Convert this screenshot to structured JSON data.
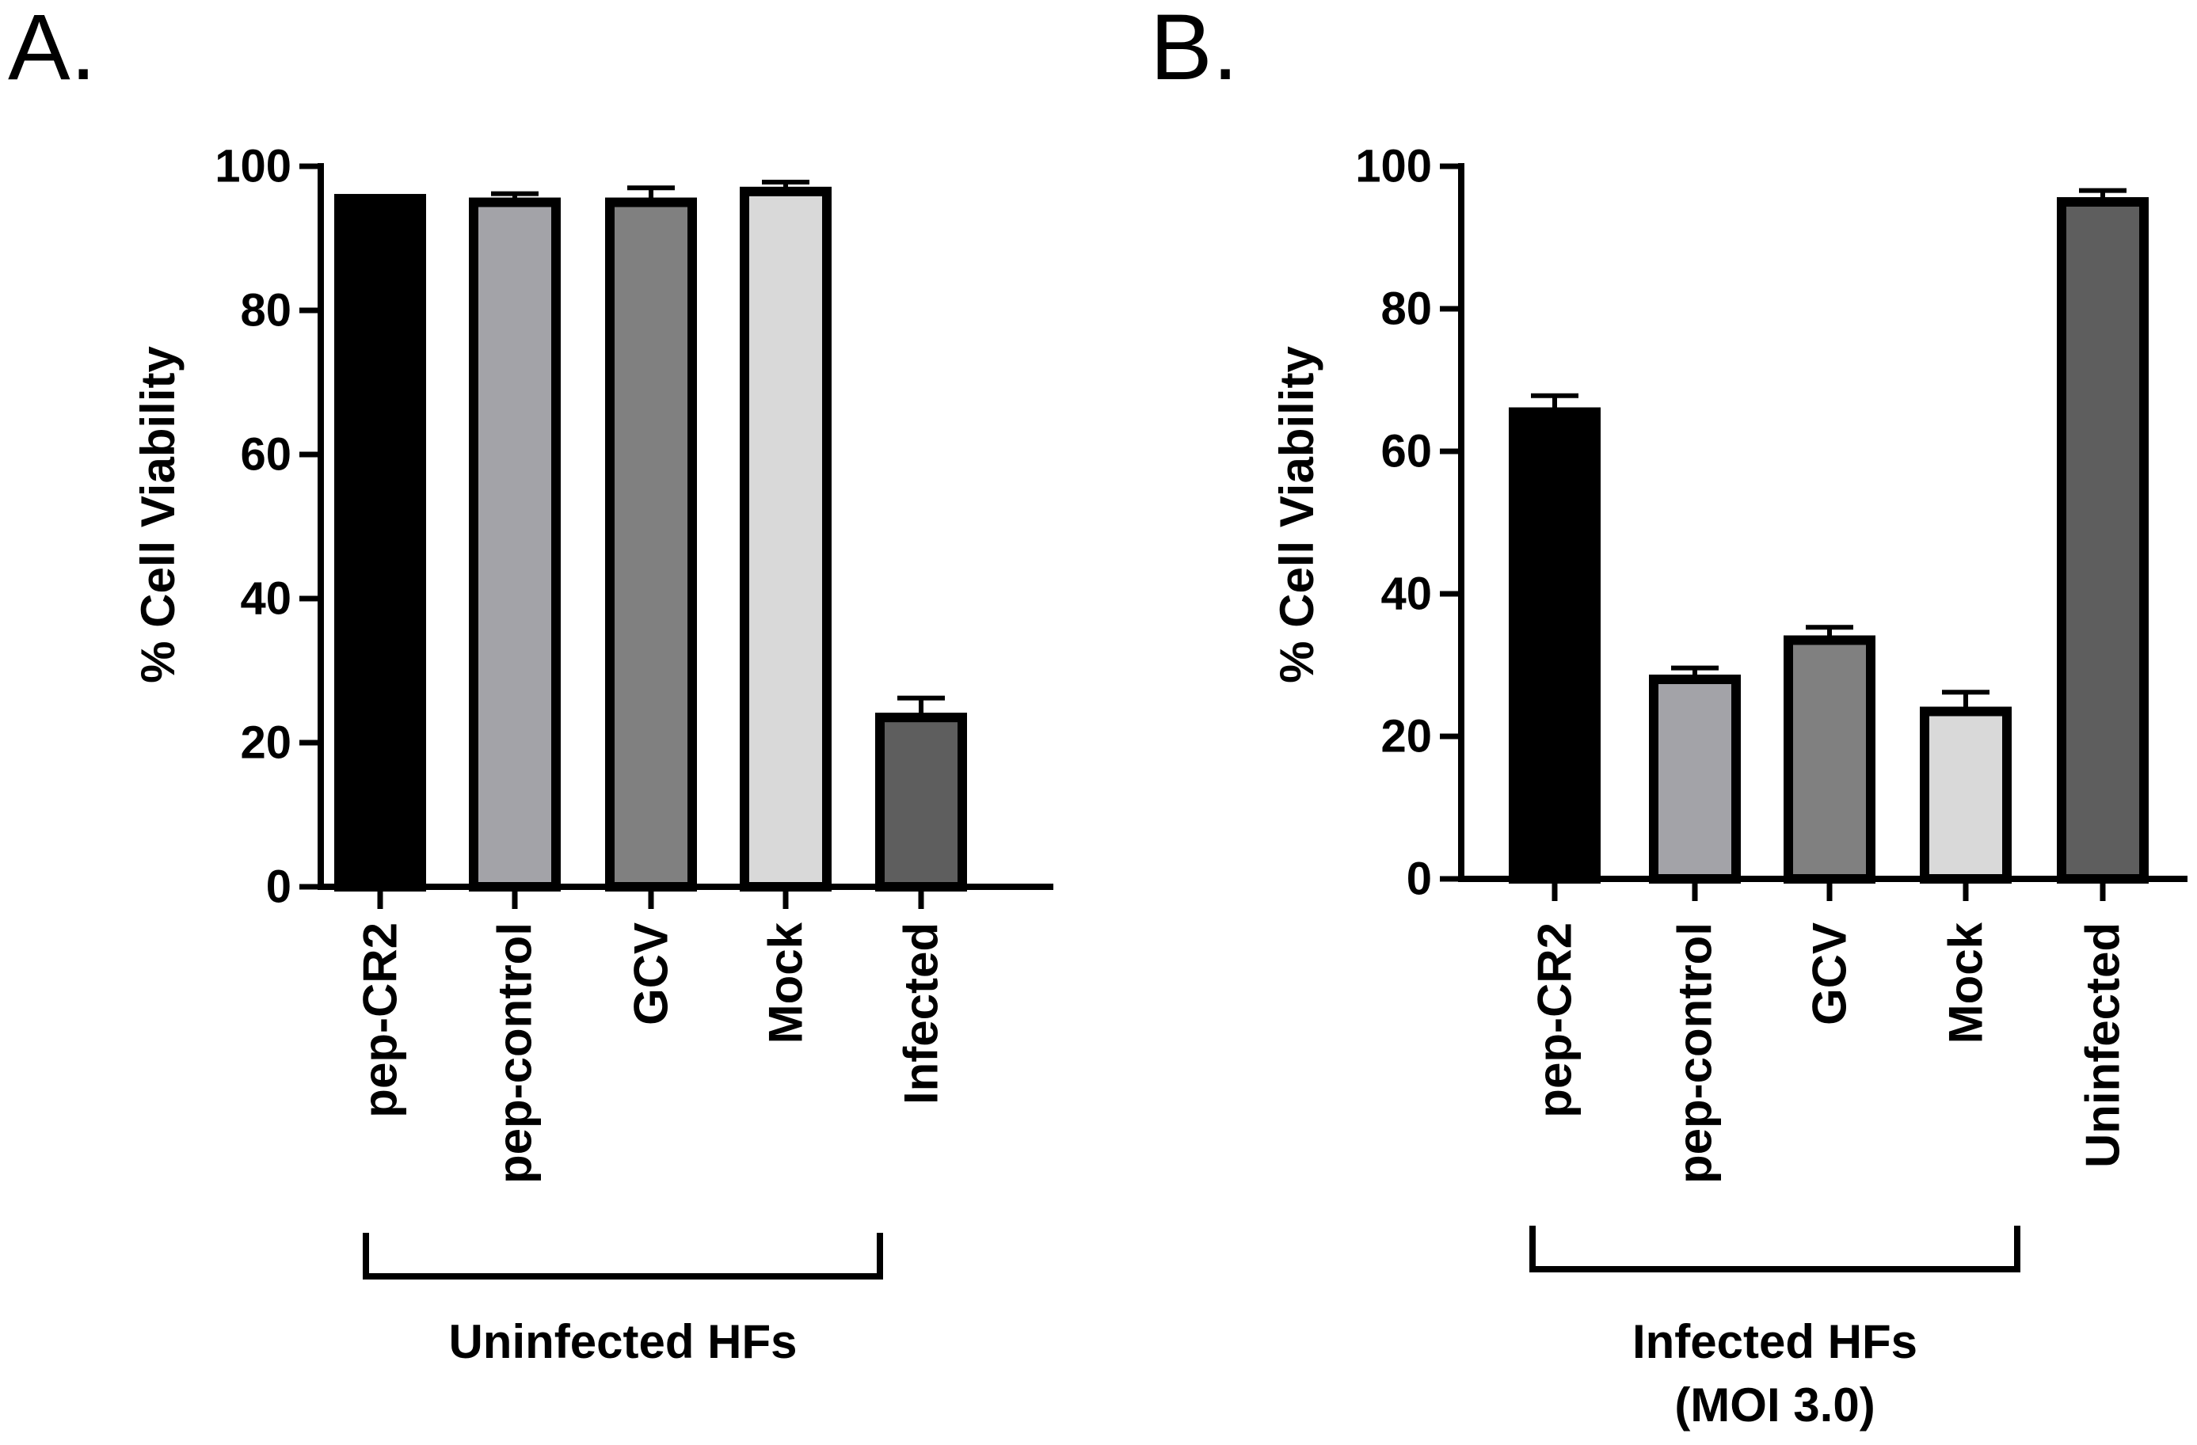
{
  "chart_data": [
    {
      "type": "bar",
      "panel": "A.",
      "ylabel": "% Cell Viability",
      "ylim": [
        0,
        100
      ],
      "yticks": [
        0,
        20,
        40,
        60,
        80,
        100
      ],
      "categories": [
        "pep-CR2",
        "pep-control",
        "GCV",
        "Mock",
        "Infected"
      ],
      "values": [
        95.5,
        95,
        95,
        96.5,
        23.5
      ],
      "errors": [
        0.3,
        1.2,
        2.0,
        1.3,
        2.7
      ],
      "colors": [
        "#000000",
        "#a3a3a8",
        "#808080",
        "#d9d9d9",
        "#5e5e5e"
      ],
      "group_label": "Uninfected HFs",
      "group_span": [
        0,
        3
      ]
    },
    {
      "type": "bar",
      "panel": "B.",
      "ylabel": "% Cell Viability",
      "ylim": [
        0,
        100
      ],
      "yticks": [
        0,
        20,
        40,
        60,
        80,
        100
      ],
      "categories": [
        "pep-CR2",
        "pep-control",
        "GCV",
        "Mock",
        "Uninfected"
      ],
      "values": [
        65.5,
        28,
        33.5,
        23.5,
        95
      ],
      "errors": [
        2.3,
        1.6,
        1.8,
        2.7,
        1.6
      ],
      "colors": [
        "#000000",
        "#a3a3a8",
        "#808080",
        "#d9d9d9",
        "#5e5e5e"
      ],
      "group_label": [
        "Infected HFs",
        "(MOI 3.0)"
      ],
      "group_span": [
        0,
        3
      ]
    }
  ]
}
